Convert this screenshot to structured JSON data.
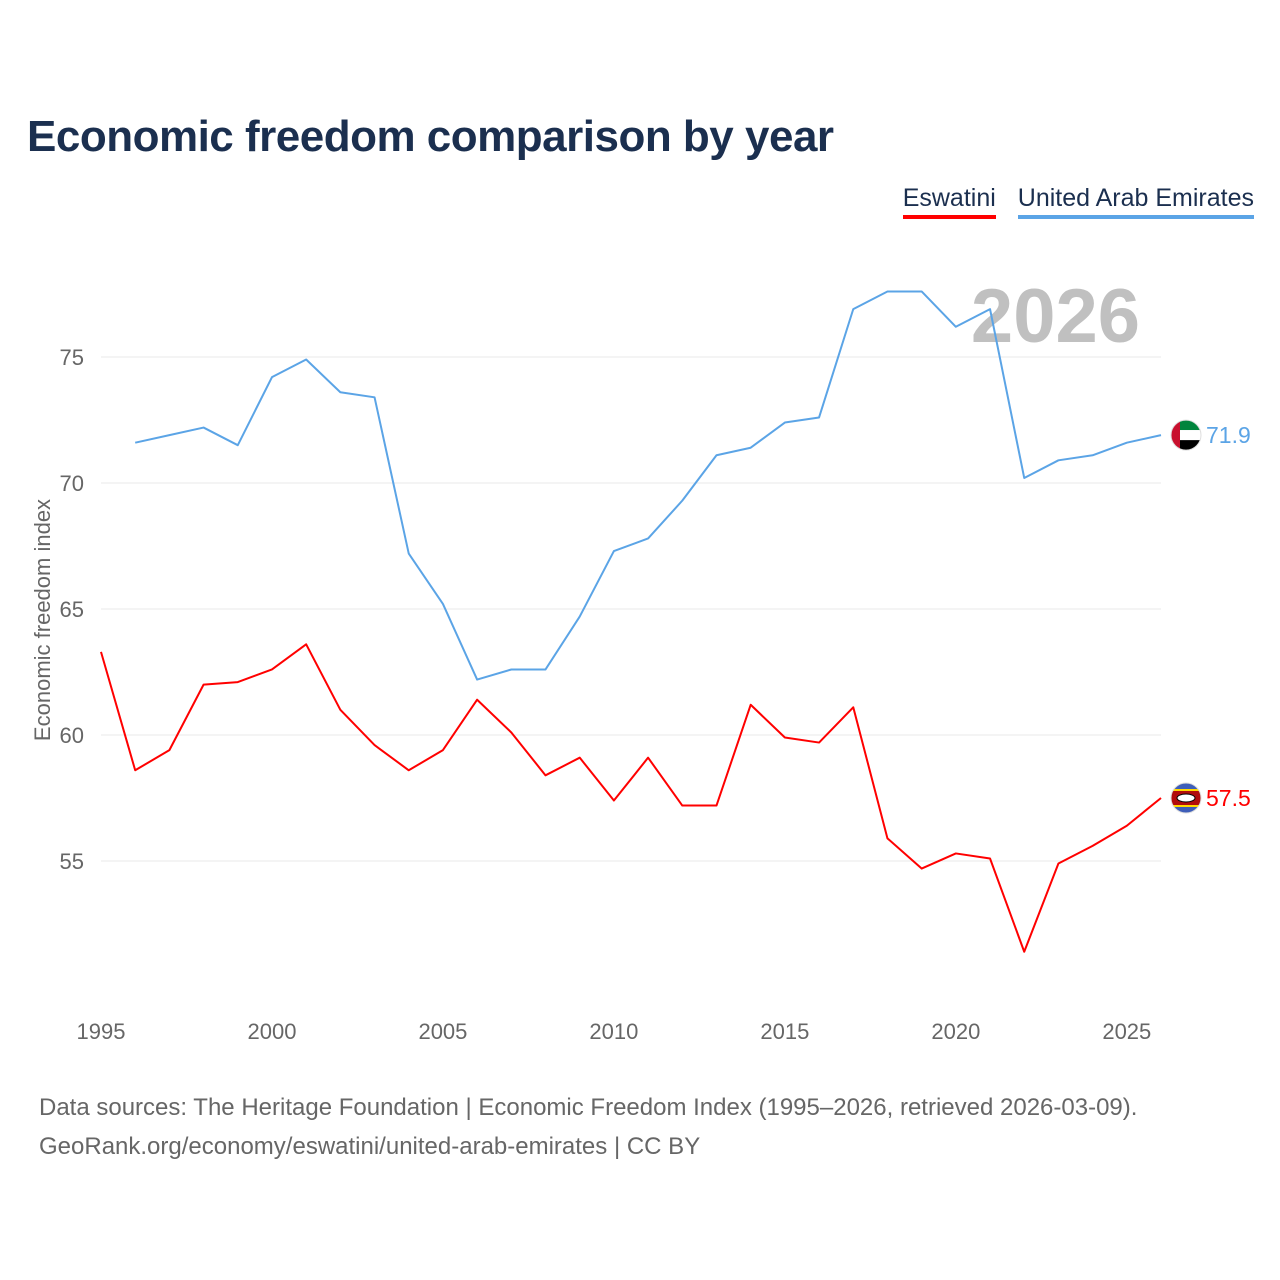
{
  "chart_data": {
    "type": "line",
    "title": "Economic freedom comparison by year",
    "xlabel": "",
    "ylabel": "Economic freedom index",
    "xlim": [
      1995,
      2026
    ],
    "ylim": [
      49.5,
      79.2
    ],
    "yticks": [
      55,
      60,
      65,
      70,
      75
    ],
    "xticks": [
      1995,
      2000,
      2005,
      2010,
      2015,
      2020,
      2025
    ],
    "grid": true,
    "legend_position": "top-right",
    "year_watermark": "2026",
    "series": [
      {
        "name": "Eswatini",
        "color": "#ff0000",
        "end_label": "57.5",
        "x": [
          1995,
          1996,
          1997,
          1998,
          1999,
          2000,
          2001,
          2002,
          2003,
          2004,
          2005,
          2006,
          2007,
          2008,
          2009,
          2010,
          2011,
          2012,
          2013,
          2014,
          2015,
          2016,
          2017,
          2018,
          2019,
          2020,
          2021,
          2022,
          2023,
          2024,
          2025,
          2026
        ],
        "values": [
          63.3,
          58.6,
          59.4,
          62.0,
          62.1,
          62.6,
          63.6,
          61.0,
          59.6,
          58.6,
          59.4,
          61.4,
          60.1,
          58.4,
          59.1,
          57.4,
          59.1,
          57.2,
          57.2,
          61.2,
          59.9,
          59.7,
          61.1,
          55.9,
          54.7,
          55.3,
          55.1,
          51.4,
          54.9,
          55.6,
          56.4,
          57.5
        ]
      },
      {
        "name": "United Arab Emirates",
        "color": "#5ba4e6",
        "end_label": "71.9",
        "x": [
          1996,
          1997,
          1998,
          1999,
          2000,
          2001,
          2002,
          2003,
          2004,
          2005,
          2006,
          2007,
          2008,
          2009,
          2010,
          2011,
          2012,
          2013,
          2014,
          2015,
          2016,
          2017,
          2018,
          2019,
          2020,
          2021,
          2022,
          2023,
          2024,
          2025,
          2026
        ],
        "values": [
          71.6,
          71.9,
          72.2,
          71.5,
          74.2,
          74.9,
          73.6,
          73.4,
          67.2,
          65.2,
          62.2,
          62.6,
          62.6,
          64.7,
          67.3,
          67.8,
          69.3,
          71.1,
          71.4,
          72.4,
          72.6,
          76.9,
          77.6,
          77.6,
          76.2,
          76.9,
          70.2,
          70.9,
          71.1,
          71.6,
          71.9
        ]
      }
    ]
  },
  "source": {
    "line1": "Data sources: The Heritage Foundation | Economic Freedom Index (1995–2026, retrieved 2026-03-09).",
    "line2": "GeoRank.org/economy/eswatini/united-arab-emirates | CC BY"
  }
}
